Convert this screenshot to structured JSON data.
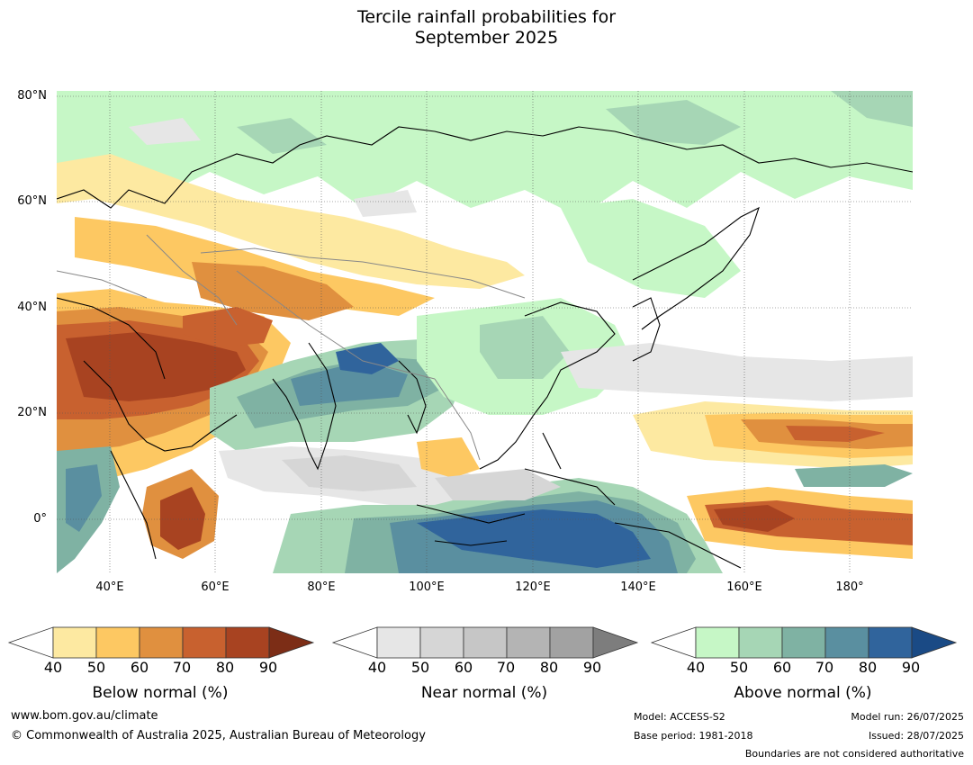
{
  "title": {
    "line1": "Tercile rainfall probabilities for",
    "line2": "September 2025"
  },
  "map": {
    "lat_labels": [
      "80°N",
      "60°N",
      "40°N",
      "20°N",
      "0°"
    ],
    "lon_labels": [
      "40°E",
      "60°E",
      "80°E",
      "100°E",
      "120°E",
      "140°E",
      "160°E",
      "180°"
    ],
    "extent": {
      "lon_min": 30,
      "lon_max": 192,
      "lat_min": -10,
      "lat_max": 81
    }
  },
  "colorbars": [
    {
      "title": "Below normal (%)",
      "ticks": [
        "40",
        "50",
        "60",
        "70",
        "80",
        "90"
      ],
      "colors": [
        "#ffffff",
        "#fde9a1",
        "#fdc862",
        "#e0903f",
        "#c8612f",
        "#a84321",
        "#7c2d16"
      ]
    },
    {
      "title": "Near normal (%)",
      "ticks": [
        "40",
        "50",
        "60",
        "70",
        "80",
        "90"
      ],
      "colors": [
        "#ffffff",
        "#e6e6e6",
        "#d6d6d6",
        "#c6c6c6",
        "#b4b4b4",
        "#a2a2a2",
        "#7d7d7d"
      ]
    },
    {
      "title": "Above normal (%)",
      "ticks": [
        "40",
        "50",
        "60",
        "70",
        "80",
        "90"
      ],
      "colors": [
        "#ffffff",
        "#c6f7c6",
        "#a6d6b5",
        "#7fb2a3",
        "#5a8fa0",
        "#30649c",
        "#1a4a85"
      ]
    }
  ],
  "footer": {
    "website": "www.bom.gov.au/climate",
    "copyright": "© Commonwealth of Australia 2025, Australian Bureau of Meteorology",
    "model": "Model: ACCESS-S2",
    "base_period": "Base period: 1981-2018",
    "model_run": "Model run: 26/07/2025",
    "issued": "Issued: 28/07/2025",
    "boundaries": "Boundaries are not considered authoritative"
  }
}
